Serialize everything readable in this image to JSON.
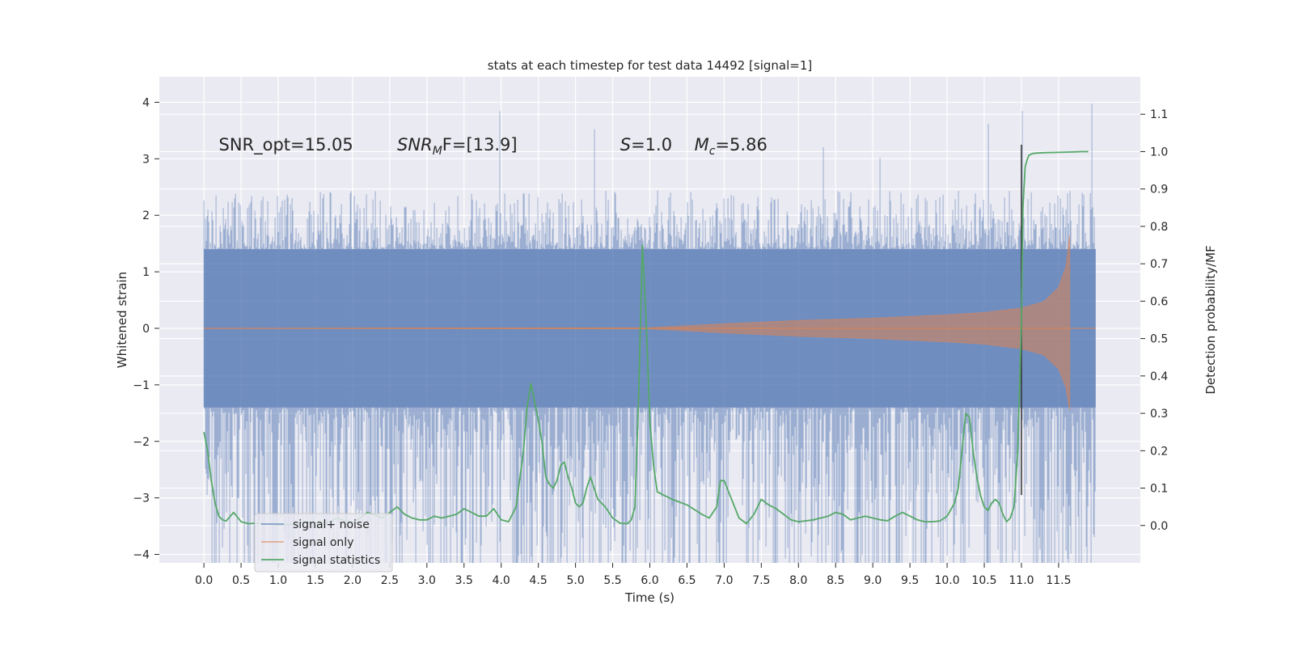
{
  "chart_data": {
    "type": "line",
    "title": "stats at each timestep for test data 14492 [signal=1]",
    "xlabel": "Time (s)",
    "ylabel": "Whitened strain",
    "y2label": "Detection probability/MF",
    "xlim": [
      -0.6,
      12.6
    ],
    "ylim": [
      -4.15,
      4.45
    ],
    "y2lim": [
      -0.1,
      1.2
    ],
    "xticks": [
      0.0,
      0.5,
      1.0,
      1.5,
      2.0,
      2.5,
      3.0,
      3.5,
      4.0,
      4.5,
      5.0,
      5.5,
      6.0,
      6.5,
      7.0,
      7.5,
      8.0,
      8.5,
      9.0,
      9.5,
      10.0,
      10.5,
      11.0,
      11.5
    ],
    "xtick_labels": [
      "0.0",
      "0.5",
      "1.0",
      "1.5",
      "2.0",
      "2.5",
      "3.0",
      "3.5",
      "4.0",
      "4.5",
      "5.0",
      "5.5",
      "6.0",
      "6.5",
      "7.0",
      "7.5",
      "8.0",
      "8.5",
      "9.0",
      "9.5",
      "10.0",
      "10.5",
      "11.0",
      "11.5"
    ],
    "yticks": [
      -4,
      -3,
      -2,
      -1,
      0,
      1,
      2,
      3,
      4
    ],
    "ytick_labels": [
      "−4",
      "−3",
      "−2",
      "−1",
      "0",
      "1",
      "2",
      "3",
      "4"
    ],
    "y2ticks": [
      0.0,
      0.1,
      0.2,
      0.3,
      0.4,
      0.5,
      0.6,
      0.7,
      0.8,
      0.9,
      1.0,
      1.1
    ],
    "y2tick_labels": [
      "0.0",
      "0.1",
      "0.2",
      "0.3",
      "0.4",
      "0.5",
      "0.6",
      "0.7",
      "0.8",
      "0.9",
      "1.0",
      "1.1"
    ],
    "grid": true,
    "legend_position": "lower-left",
    "colors": {
      "noise": "#4c72b0",
      "signal": "#dd8452",
      "stats": "#55a868",
      "background": "#eaeaf2",
      "grid": "#ffffff",
      "marker": "#333333"
    },
    "annotations": [
      {
        "text": "SNR_opt=15.05",
        "x": 0.2,
        "y": 3.15
      },
      {
        "main": "SNR",
        "sub": "M",
        "rest": "F=[13.9]",
        "x": 2.6,
        "y": 3.15
      },
      {
        "main": "S",
        "sub": "",
        "rest": "=1.0",
        "x": 5.6,
        "y": 3.15
      },
      {
        "main": "M",
        "sub": "c",
        "rest": "=5.86",
        "x": 6.6,
        "y": 3.15
      }
    ],
    "vertical_marker": {
      "x": 11.0,
      "y_from": -2.95,
      "y_to": 3.25
    },
    "series": [
      {
        "name": "signal+ noise",
        "kind": "noise",
        "x_range": [
          0.0,
          12.0
        ],
        "core_amplitude": 1.4,
        "typical_high": 2.3,
        "typical_low": -2.3,
        "max": 4.1,
        "min": -3.7
      },
      {
        "name": "signal only",
        "kind": "chirp",
        "x_range": [
          0.0,
          11.65
        ],
        "envelope": {
          "x": [
            0.0,
            6.0,
            7.0,
            8.0,
            9.0,
            10.0,
            10.5,
            11.0,
            11.3,
            11.5,
            11.6,
            11.65
          ],
          "upper": [
            0.0,
            0.01,
            0.08,
            0.14,
            0.18,
            0.24,
            0.28,
            0.36,
            0.47,
            0.72,
            1.1,
            1.65
          ],
          "lower": [
            0.0,
            -0.01,
            -0.08,
            -0.14,
            -0.18,
            -0.24,
            -0.28,
            -0.36,
            -0.47,
            -0.72,
            -1.05,
            -1.45
          ]
        }
      },
      {
        "name": "signal statistics",
        "kind": "line",
        "x": [
          0.0,
          0.05,
          0.1,
          0.15,
          0.2,
          0.25,
          0.3,
          0.4,
          0.5,
          0.6,
          0.7,
          0.8,
          1.0,
          1.2,
          1.4,
          1.5,
          1.6,
          1.7,
          1.8,
          1.9,
          2.0,
          2.1,
          2.2,
          2.3,
          2.4,
          2.5,
          2.6,
          2.7,
          2.8,
          2.9,
          3.0,
          3.1,
          3.2,
          3.3,
          3.4,
          3.5,
          3.6,
          3.7,
          3.8,
          3.9,
          4.0,
          4.1,
          4.2,
          4.3,
          4.35,
          4.4,
          4.45,
          4.5,
          4.55,
          4.6,
          4.65,
          4.7,
          4.75,
          4.8,
          4.85,
          4.9,
          4.95,
          5.0,
          5.05,
          5.1,
          5.15,
          5.2,
          5.3,
          5.4,
          5.5,
          5.6,
          5.7,
          5.75,
          5.8,
          5.85,
          5.9,
          5.95,
          6.0,
          6.05,
          6.1,
          6.2,
          6.3,
          6.5,
          6.7,
          6.8,
          6.9,
          6.95,
          7.0,
          7.1,
          7.2,
          7.3,
          7.4,
          7.5,
          7.6,
          7.7,
          7.8,
          7.9,
          8.0,
          8.2,
          8.4,
          8.5,
          8.6,
          8.7,
          8.8,
          8.9,
          9.0,
          9.1,
          9.2,
          9.3,
          9.4,
          9.5,
          9.6,
          9.7,
          9.8,
          9.9,
          10.0,
          10.1,
          10.15,
          10.2,
          10.25,
          10.3,
          10.35,
          10.4,
          10.45,
          10.5,
          10.55,
          10.6,
          10.65,
          10.7,
          10.75,
          10.8,
          10.85,
          10.9,
          10.95,
          11.0,
          11.02,
          11.05,
          11.08,
          11.1,
          11.15,
          11.2,
          11.3,
          11.5,
          11.7,
          11.8,
          11.9
        ],
        "y": [
          0.25,
          0.2,
          0.12,
          0.06,
          0.025,
          0.015,
          0.012,
          0.035,
          0.01,
          0.005,
          0.006,
          0.005,
          0.002,
          0.003,
          0.01,
          0.006,
          0.005,
          0.01,
          0.02,
          0.012,
          0.008,
          0.02,
          0.035,
          0.028,
          0.02,
          0.035,
          0.05,
          0.03,
          0.02,
          0.015,
          0.015,
          0.025,
          0.02,
          0.025,
          0.03,
          0.045,
          0.035,
          0.025,
          0.025,
          0.045,
          0.015,
          0.01,
          0.05,
          0.2,
          0.32,
          0.38,
          0.33,
          0.28,
          0.22,
          0.13,
          0.11,
          0.1,
          0.12,
          0.16,
          0.17,
          0.13,
          0.1,
          0.06,
          0.05,
          0.06,
          0.1,
          0.13,
          0.07,
          0.05,
          0.02,
          0.006,
          0.005,
          0.015,
          0.05,
          0.35,
          0.75,
          0.55,
          0.28,
          0.16,
          0.09,
          0.08,
          0.07,
          0.055,
          0.03,
          0.02,
          0.05,
          0.12,
          0.12,
          0.07,
          0.02,
          0.005,
          0.03,
          0.07,
          0.055,
          0.045,
          0.03,
          0.015,
          0.01,
          0.015,
          0.025,
          0.035,
          0.03,
          0.015,
          0.02,
          0.025,
          0.02,
          0.015,
          0.013,
          0.025,
          0.035,
          0.025,
          0.015,
          0.01,
          0.01,
          0.012,
          0.025,
          0.06,
          0.1,
          0.2,
          0.3,
          0.29,
          0.2,
          0.13,
          0.08,
          0.05,
          0.04,
          0.06,
          0.07,
          0.06,
          0.03,
          0.01,
          0.02,
          0.05,
          0.2,
          0.55,
          0.85,
          0.96,
          0.98,
          0.99,
          0.995,
          0.996,
          0.997,
          0.998,
          0.999,
          1.0,
          1.0
        ]
      }
    ]
  }
}
